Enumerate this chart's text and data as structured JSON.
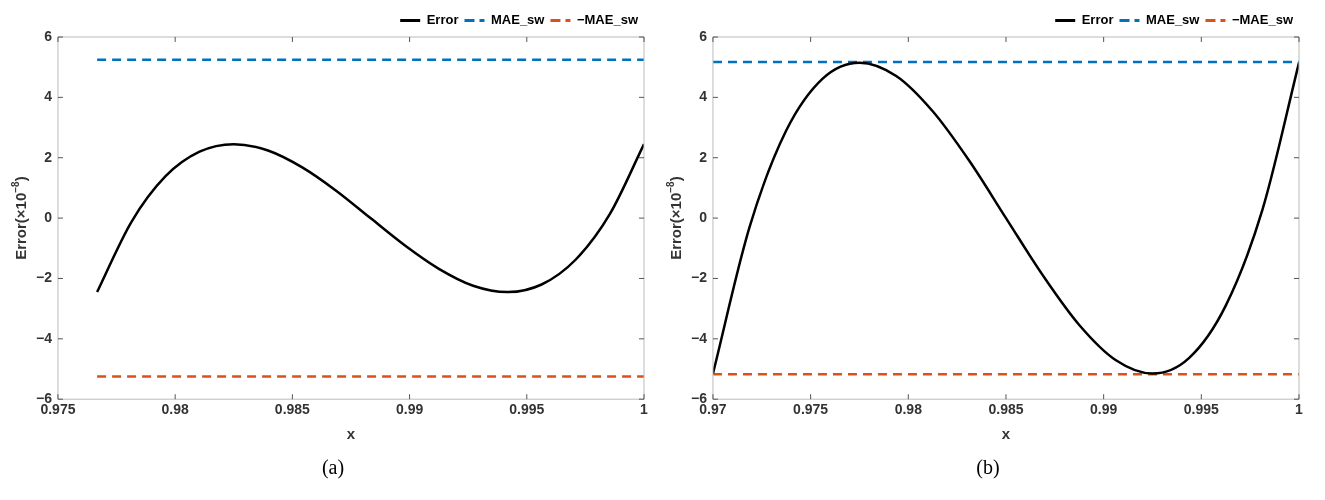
{
  "chart_data": [
    {
      "type": "line",
      "xlabel": "x",
      "ylabel": "Error(×10$^{−8}$)",
      "xlim": [
        0.975,
        1
      ],
      "xticks": [
        0.975,
        0.98,
        0.985,
        0.99,
        0.995,
        1
      ],
      "ylim": [
        -6,
        6
      ],
      "yticks": [
        {
          "value": -6,
          "label": "−6"
        },
        {
          "value": -4,
          "label": "−4"
        },
        {
          "value": -2,
          "label": "−2"
        },
        0,
        2,
        4,
        6
      ],
      "grid": false,
      "legend": "top right",
      "marker": "none",
      "annotations": [
        "(a)"
      ],
      "series": [
        {
          "name": "Error",
          "color": "#000000",
          "line_style": "solid",
          "x": [
            0.97667,
            0.97813,
            0.97958,
            0.98104,
            0.9825,
            0.98396,
            0.98542,
            0.98688,
            0.98833,
            0.98979,
            0.99125,
            0.99271,
            0.99417,
            0.99563,
            0.99708,
            0.99854,
            1
          ],
          "values": [
            -2.45,
            -0.13,
            1.38,
            2.2,
            2.45,
            2.24,
            1.68,
            0.9,
            0,
            -0.9,
            -1.68,
            -2.24,
            -2.45,
            -2.2,
            -1.38,
            0.13,
            2.45
          ]
        },
        {
          "name": "MAE_sw",
          "color": "#0072bd",
          "line_style": "dashed",
          "x": [
            0.97667,
            1
          ],
          "values": [
            5.25,
            5.25
          ]
        },
        {
          "name": "−MAE_sw",
          "color": "#d95319",
          "line_style": "dashed",
          "x": [
            0.97667,
            1
          ],
          "values": [
            -5.25,
            -5.25
          ]
        }
      ]
    },
    {
      "type": "line",
      "xlabel": "x",
      "ylabel": "Error(×10$^{−8}$)",
      "xlim": [
        0.97,
        1
      ],
      "xticks": [
        0.97,
        0.975,
        0.98,
        0.985,
        0.99,
        0.995,
        1
      ],
      "ylim": [
        -6,
        6
      ],
      "yticks": [
        {
          "value": -6,
          "label": "−6"
        },
        {
          "value": -4,
          "label": "−4"
        },
        {
          "value": -2,
          "label": "−2"
        },
        0,
        2,
        4,
        6
      ],
      "grid": false,
      "legend": "top right",
      "marker": "none",
      "annotations": [
        "(b)"
      ],
      "series": [
        {
          "name": "Error",
          "color": "#000000",
          "line_style": "solid",
          "x": [
            0.97,
            0.97188,
            0.97375,
            0.97563,
            0.9775,
            0.97938,
            0.98125,
            0.98313,
            0.985,
            0.98688,
            0.98875,
            0.99063,
            0.9925,
            0.99438,
            0.99625,
            0.99813,
            1
          ],
          "values": [
            -5.15,
            -0.28,
            2.9,
            4.63,
            5.15,
            4.71,
            3.54,
            1.89,
            0,
            -1.89,
            -3.54,
            -4.71,
            -5.15,
            -4.63,
            -2.9,
            0.28,
            5.15
          ]
        },
        {
          "name": "MAE_sw",
          "color": "#0072bd",
          "line_style": "dashed",
          "x": [
            0.97,
            1
          ],
          "values": [
            5.17,
            5.17
          ]
        },
        {
          "name": "−MAE_sw",
          "color": "#d95319",
          "line_style": "dashed",
          "x": [
            0.97,
            1
          ],
          "values": [
            -5.17,
            -5.17
          ]
        }
      ]
    }
  ]
}
